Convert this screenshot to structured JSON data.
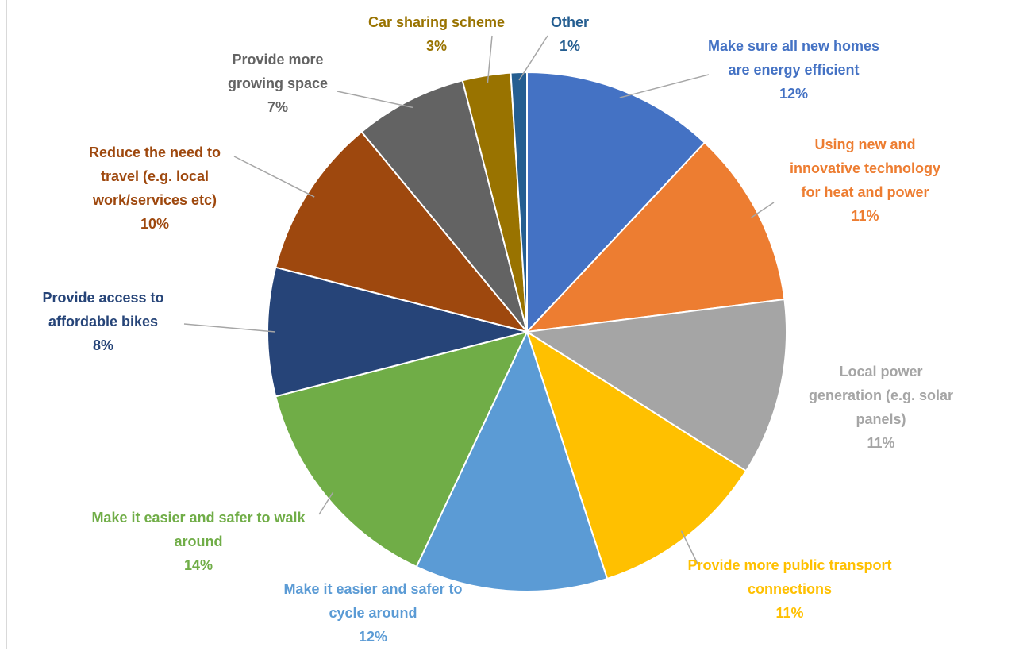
{
  "chart_data": {
    "type": "pie",
    "categories": [
      "Make sure all new homes are energy efficient",
      "Using new and innovative technology for heat and power",
      "Local power generation (e.g. solar panels)",
      "Provide more public transport connections",
      "Make it easier and safer to cycle around",
      "Make it easier and safer to walk around",
      "Provide access to affordable bikes",
      "Reduce the need to travel (e.g. local work/services etc)",
      "Provide more growing space",
      "Car sharing scheme",
      "Other"
    ],
    "values": [
      12,
      11,
      11,
      11,
      12,
      14,
      8,
      10,
      7,
      3,
      1
    ],
    "value_labels": [
      "12%",
      "11%",
      "11%",
      "11%",
      "12%",
      "14%",
      "8%",
      "10%",
      "7%",
      "3%",
      "1%"
    ],
    "colors": [
      "#4472c4",
      "#ed7d31",
      "#a5a5a5",
      "#ffc000",
      "#5b9bd5",
      "#70ad47",
      "#264478",
      "#9e480e",
      "#636363",
      "#997300",
      "#255e91"
    ]
  }
}
